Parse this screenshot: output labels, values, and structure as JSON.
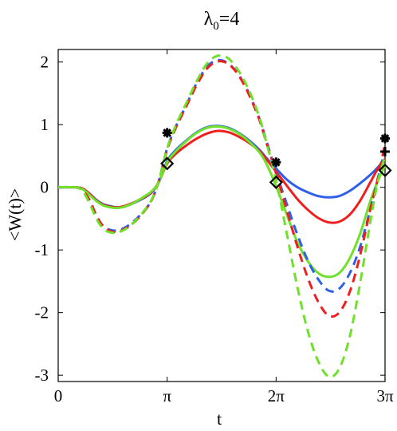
{
  "chart_data": {
    "type": "line",
    "title": {
      "main": "λ",
      "sub": "0",
      "rest": "=4"
    },
    "xlabel": "t",
    "ylabel": "<W(t)>",
    "xlim": [
      0,
      9.4248
    ],
    "ylim": [
      -3.1,
      2.2
    ],
    "xticks": [
      {
        "value": 0,
        "label": "0"
      },
      {
        "value": 3.1416,
        "label": "π"
      },
      {
        "value": 6.2832,
        "label": "2π"
      },
      {
        "value": 9.4248,
        "label": "3π"
      }
    ],
    "yticks": [
      {
        "value": 2,
        "label": "2"
      },
      {
        "value": 1,
        "label": "1"
      },
      {
        "value": 0,
        "label": "0"
      },
      {
        "value": -1,
        "label": "-1"
      },
      {
        "value": -2,
        "label": "-2"
      },
      {
        "value": -3,
        "label": "-3"
      }
    ],
    "grid": false,
    "x": [
      0,
      0.5,
      0.7,
      0.9,
      1.1,
      1.3,
      1.5,
      1.7,
      1.9,
      2.1,
      2.3,
      2.5,
      2.7,
      2.9,
      3.1416,
      3.4,
      3.7,
      4.0,
      4.3,
      4.6,
      4.9,
      5.2,
      5.5,
      5.8,
      6.0,
      6.2832,
      6.6,
      6.9,
      7.2,
      7.5,
      7.8,
      8.1,
      8.4,
      8.7,
      9.0,
      9.2,
      9.4248
    ],
    "series": [
      {
        "color": "#2f5fe8",
        "style": "solid",
        "values": [
          0,
          0,
          -0.02,
          -0.1,
          -0.2,
          -0.27,
          -0.3,
          -0.32,
          -0.31,
          -0.27,
          -0.22,
          -0.16,
          -0.08,
          0.08,
          0.42,
          0.6,
          0.75,
          0.88,
          0.96,
          0.98,
          0.95,
          0.87,
          0.75,
          0.6,
          0.47,
          0.3,
          0.12,
          0.0,
          -0.08,
          -0.14,
          -0.16,
          -0.14,
          -0.06,
          0.06,
          0.2,
          0.31,
          0.45
        ]
      },
      {
        "color": "#ef1f1f",
        "style": "solid",
        "values": [
          0,
          0,
          -0.02,
          -0.1,
          -0.21,
          -0.28,
          -0.31,
          -0.32,
          -0.3,
          -0.26,
          -0.21,
          -0.15,
          -0.07,
          0.08,
          0.38,
          0.54,
          0.67,
          0.78,
          0.86,
          0.9,
          0.88,
          0.81,
          0.71,
          0.58,
          0.45,
          0.25,
          0.02,
          -0.19,
          -0.36,
          -0.49,
          -0.56,
          -0.55,
          -0.44,
          -0.22,
          0.08,
          0.28,
          0.45
        ]
      },
      {
        "color": "#6fe12a",
        "style": "solid",
        "values": [
          0,
          0,
          -0.03,
          -0.12,
          -0.22,
          -0.29,
          -0.32,
          -0.33,
          -0.31,
          -0.27,
          -0.21,
          -0.14,
          -0.06,
          0.08,
          0.4,
          0.58,
          0.74,
          0.87,
          0.95,
          0.97,
          0.94,
          0.86,
          0.73,
          0.56,
          0.38,
          0.02,
          -0.45,
          -0.88,
          -1.18,
          -1.37,
          -1.43,
          -1.37,
          -1.14,
          -0.75,
          -0.22,
          0.08,
          0.35
        ]
      },
      {
        "color": "#2f5fe8",
        "style": "dashed",
        "values": [
          0,
          0,
          -0.05,
          -0.2,
          -0.45,
          -0.62,
          -0.68,
          -0.69,
          -0.65,
          -0.58,
          -0.48,
          -0.36,
          -0.2,
          0.1,
          0.62,
          0.98,
          1.32,
          1.67,
          1.93,
          2.03,
          1.98,
          1.8,
          1.5,
          1.1,
          0.75,
          0.24,
          -0.28,
          -0.76,
          -1.17,
          -1.47,
          -1.65,
          -1.62,
          -1.38,
          -0.96,
          -0.35,
          0.1,
          0.6
        ]
      },
      {
        "color": "#ef1f1f",
        "style": "dashed",
        "values": [
          0,
          0,
          -0.05,
          -0.2,
          -0.45,
          -0.63,
          -0.7,
          -0.71,
          -0.67,
          -0.6,
          -0.5,
          -0.37,
          -0.2,
          0.1,
          0.6,
          0.96,
          1.3,
          1.64,
          1.9,
          2.01,
          1.97,
          1.79,
          1.48,
          1.08,
          0.72,
          0.22,
          -0.38,
          -0.95,
          -1.45,
          -1.83,
          -2.05,
          -2.0,
          -1.68,
          -1.1,
          -0.35,
          0.1,
          0.7
        ]
      },
      {
        "color": "#6fe12a",
        "style": "dashed",
        "values": [
          0,
          0,
          -0.06,
          -0.25,
          -0.5,
          -0.66,
          -0.72,
          -0.72,
          -0.68,
          -0.6,
          -0.49,
          -0.36,
          -0.19,
          0.1,
          0.62,
          1.0,
          1.35,
          1.7,
          1.98,
          2.1,
          2.06,
          1.86,
          1.55,
          1.12,
          0.72,
          0.12,
          -0.76,
          -1.6,
          -2.3,
          -2.78,
          -3.02,
          -2.9,
          -2.4,
          -1.55,
          -0.55,
          0.05,
          0.5
        ]
      }
    ],
    "markers": [
      {
        "symbol": "asterisk",
        "x": 3.1416,
        "y": 0.87
      },
      {
        "symbol": "diamond",
        "x": 3.1416,
        "y": 0.38
      },
      {
        "symbol": "asterisk",
        "x": 6.2832,
        "y": 0.4
      },
      {
        "symbol": "diamond",
        "x": 6.2832,
        "y": 0.08
      },
      {
        "symbol": "asterisk",
        "x": 9.4248,
        "y": 0.78
      },
      {
        "symbol": "plus",
        "x": 9.4248,
        "y": 0.57
      },
      {
        "symbol": "diamond",
        "x": 9.4248,
        "y": 0.27
      }
    ]
  }
}
